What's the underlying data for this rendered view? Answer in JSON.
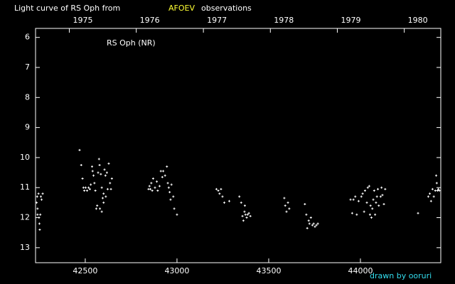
{
  "chart_data": {
    "type": "scatter",
    "title": "Light curve of RS Oph from",
    "title_source": "AFOEV",
    "title_suffix": "observations",
    "label": "RS Oph (NR)",
    "credit": "drawn by ooruri",
    "color": "#ffffff",
    "title_source_color": "#ffff33",
    "credit_color": "#33ddee",
    "xlim": [
      42229,
      44438
    ],
    "ylim": [
      13.5,
      5.7
    ],
    "xticks": [
      42500,
      43000,
      43500,
      44000
    ],
    "yticks": [
      6,
      7,
      8,
      9,
      10,
      11,
      12,
      13
    ],
    "x2ticks": [
      {
        "value": 42413,
        "label": "1975"
      },
      {
        "value": 42778,
        "label": "1976"
      },
      {
        "value": 43144,
        "label": "1977"
      },
      {
        "value": 43509,
        "label": "1978"
      },
      {
        "value": 43874,
        "label": "1979"
      },
      {
        "value": 44239,
        "label": "1980"
      }
    ],
    "x": [
      42235,
      42238,
      42240,
      42245,
      42248,
      42250,
      42252,
      42255,
      42258,
      42262,
      42268,
      42240,
      42469,
      42478,
      42485,
      42490,
      42495,
      42502,
      42510,
      42518,
      42525,
      42530,
      42537,
      42540,
      42545,
      42550,
      42555,
      42560,
      42565,
      42570,
      42575,
      42578,
      42580,
      42585,
      42590,
      42595,
      42600,
      42605,
      42610,
      42612,
      42618,
      42622,
      42628,
      42635,
      42640,
      42645,
      42600,
      42590,
      42845,
      42850,
      42855,
      42860,
      42865,
      42870,
      42880,
      42890,
      42895,
      42905,
      42912,
      42920,
      42925,
      42935,
      42945,
      42950,
      42955,
      42960,
      42965,
      42970,
      42980,
      42985,
      43000,
      43215,
      43225,
      43232,
      43240,
      43248,
      43258,
      43285,
      43340,
      43350,
      43357,
      43362,
      43368,
      43373,
      43380,
      43385,
      43392,
      43400,
      43370,
      43585,
      43590,
      43597,
      43605,
      43612,
      43697,
      43705,
      43710,
      43718,
      43722,
      43730,
      43738,
      43745,
      43752,
      43760,
      43768,
      43946,
      43955,
      43962,
      43972,
      43980,
      43990,
      44005,
      44012,
      44020,
      44025,
      44035,
      44040,
      44048,
      44052,
      44055,
      44060,
      44065,
      44070,
      44075,
      44080,
      44085,
      44090,
      44095,
      44100,
      44110,
      44115,
      44120,
      44128,
      44135,
      44314,
      44370,
      44378,
      44385,
      44393,
      44400,
      44408,
      44413,
      44416,
      44420,
      44425,
      44430
    ],
    "values": [
      11.5,
      11.3,
      11.7,
      11.2,
      12.0,
      12.2,
      12.4,
      11.9,
      11.3,
      11.4,
      11.2,
      11.9,
      9.75,
      10.25,
      10.7,
      11.0,
      11.1,
      11.0,
      11.1,
      11.0,
      11.05,
      10.9,
      10.3,
      10.45,
      10.6,
      10.85,
      11.1,
      11.7,
      11.6,
      10.5,
      10.05,
      10.25,
      11.7,
      10.55,
      11.0,
      11.35,
      11.2,
      10.4,
      10.6,
      11.3,
      10.5,
      11.05,
      10.2,
      10.85,
      11.05,
      10.7,
      11.5,
      11.8,
      11.05,
      10.95,
      11.05,
      10.85,
      11.1,
      10.7,
      11.0,
      10.8,
      11.1,
      10.95,
      10.45,
      10.65,
      10.45,
      10.6,
      10.3,
      10.85,
      11.0,
      11.15,
      11.4,
      10.9,
      11.3,
      11.7,
      11.9,
      11.05,
      11.1,
      11.2,
      11.05,
      11.3,
      11.5,
      11.45,
      11.3,
      11.5,
      11.95,
      12.1,
      11.8,
      11.9,
      12.0,
      11.9,
      11.85,
      11.95,
      11.6,
      11.35,
      11.6,
      11.8,
      11.5,
      11.7,
      11.55,
      11.9,
      12.35,
      12.1,
      12.2,
      12.0,
      12.25,
      12.2,
      12.3,
      12.25,
      12.2,
      11.4,
      11.85,
      11.4,
      11.3,
      11.9,
      11.45,
      11.3,
      11.2,
      11.8,
      11.1,
      11.5,
      11.0,
      10.95,
      11.9,
      11.6,
      12.0,
      11.7,
      11.4,
      11.1,
      11.9,
      11.5,
      11.3,
      11.05,
      11.6,
      11.3,
      11.0,
      11.25,
      11.55,
      11.05,
      11.85,
      11.3,
      11.2,
      11.45,
      11.05,
      11.3,
      11.1,
      10.6,
      10.85,
      11.1,
      11.05,
      11.1
    ]
  }
}
